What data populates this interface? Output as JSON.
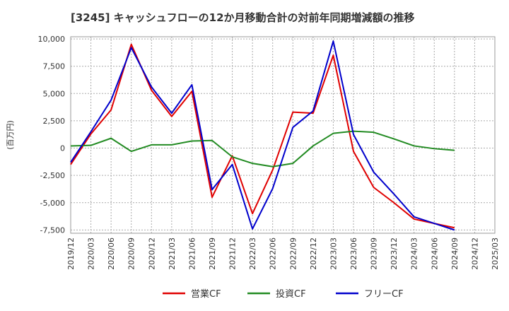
{
  "chart_data": {
    "type": "line",
    "title": "[3245]  キャッシュフローの12か月移動合計の対前年同期増減額の推移",
    "ylabel": "(百万円)",
    "xlabel": "",
    "ylim": [
      -7800,
      10200
    ],
    "yticks": [
      10000,
      7500,
      5000,
      2500,
      0,
      -2500,
      -5000,
      -7500
    ],
    "ytick_labels": [
      "10,000",
      "7,500",
      "5,000",
      "2,500",
      "0",
      "-2,500",
      "-5,000",
      "-7,500"
    ],
    "categories": [
      "2019/12",
      "2020/03",
      "2020/06",
      "2020/09",
      "2020/12",
      "2021/03",
      "2021/06",
      "2021/09",
      "2021/12",
      "2022/03",
      "2022/06",
      "2022/09",
      "2022/12",
      "2023/03",
      "2023/06",
      "2023/09",
      "2023/12",
      "2024/03",
      "2024/06",
      "2024/09",
      "2024/12",
      "2025/03"
    ],
    "grid": true,
    "legend_position": "bottom",
    "series": [
      {
        "name": "営業CF",
        "color": "#e00000",
        "values": [
          -1500,
          1300,
          3500,
          9500,
          5300,
          2900,
          5200,
          -4500,
          -700,
          -6000,
          -2000,
          3300,
          3200,
          8500,
          -300,
          -3600,
          -5000,
          -6500,
          -6900,
          -7300,
          null,
          null
        ]
      },
      {
        "name": "投資CF",
        "color": "#228b22",
        "values": [
          200,
          250,
          900,
          -300,
          300,
          300,
          650,
          700,
          -800,
          -1400,
          -1700,
          -1400,
          200,
          1350,
          1550,
          1450,
          850,
          200,
          -50,
          -200,
          null,
          null
        ]
      },
      {
        "name": "フリーCF",
        "color": "#0000cc",
        "values": [
          -1300,
          1500,
          4400,
          9200,
          5600,
          3200,
          5800,
          -3800,
          -1500,
          -7400,
          -3700,
          1900,
          3400,
          9800,
          1250,
          -2200,
          -4200,
          -6300,
          -6900,
          -7500,
          null,
          null
        ]
      }
    ]
  }
}
